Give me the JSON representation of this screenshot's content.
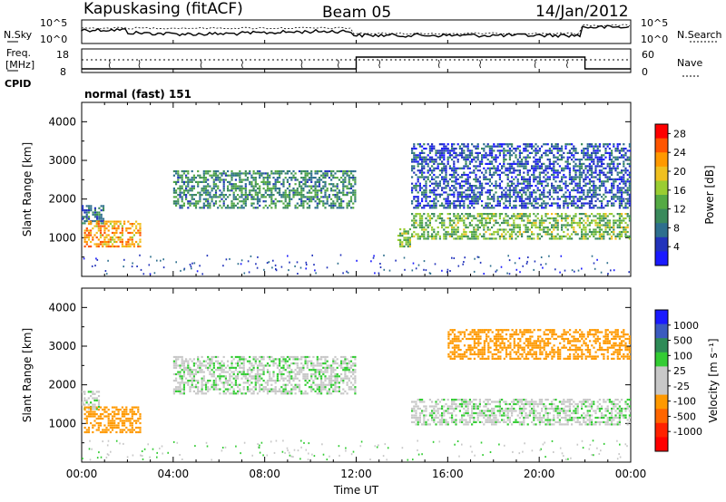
{
  "header": {
    "station": "Kapuskasing (fitACF)",
    "beam": "Beam 05",
    "date": "14/Jan/2012"
  },
  "top_panel": {
    "left_label": "N.Sky",
    "right_label": "N.Search",
    "y_ticks": [
      "10^5",
      "10^0"
    ],
    "right_ticks": [
      "10^5",
      "10^0"
    ]
  },
  "freq_panel": {
    "label_line1": "Freq.",
    "label_line2": "[MHz]",
    "y_ticks": [
      "18",
      "8"
    ],
    "right_label": "Nave",
    "right_ticks": [
      "60",
      "0"
    ]
  },
  "cpid": {
    "label": "CPID",
    "mode": "normal (fast) 151"
  },
  "colors": {
    "power_scale": [
      "#1a1aff",
      "#2233bb",
      "#2e6f8e",
      "#3a8a5c",
      "#55aa44",
      "#9acd32",
      "#f0c020",
      "#ff9900",
      "#ff5500",
      "#ff0000"
    ],
    "velocity_scale": [
      "#1a1aff",
      "#3b5bbf",
      "#2e8b57",
      "#33cc33",
      "#c8c8c8",
      "#c8c8c8",
      "#ff9900",
      "#ff6600",
      "#ff2200",
      "#ff0000"
    ]
  },
  "chart_data": [
    {
      "type": "heatmap",
      "title": "",
      "ylabel": "Slant Range [km]",
      "xlabel": "",
      "y_ticks": [
        "1000",
        "2000",
        "3000",
        "4000"
      ],
      "ylim": [
        0,
        4500
      ],
      "xlim": [
        "00:00",
        "24:00"
      ],
      "colorbar": {
        "label": "Power [dB]",
        "ticks": [
          "4",
          "8",
          "12",
          "16",
          "20",
          "24",
          "28"
        ],
        "range": [
          0,
          30
        ]
      },
      "echo_regions": [
        {
          "start_h": 0.0,
          "end_h": 1.0,
          "range_km": [
            1400,
            1900
          ],
          "value": 8
        },
        {
          "start_h": 0.1,
          "end_h": 2.6,
          "range_km": [
            800,
            1500
          ],
          "value": 22
        },
        {
          "start_h": 4.0,
          "end_h": 12.0,
          "range_km": [
            1800,
            2800
          ],
          "value": 10
        },
        {
          "start_h": 13.8,
          "end_h": 14.4,
          "range_km": [
            800,
            1300
          ],
          "value": 14
        },
        {
          "start_h": 14.4,
          "end_h": 24.0,
          "range_km": [
            1000,
            1700
          ],
          "value": 14
        },
        {
          "start_h": 14.4,
          "end_h": 24.0,
          "range_km": [
            1800,
            3500
          ],
          "value": 6
        }
      ]
    },
    {
      "type": "heatmap",
      "title": "",
      "ylabel": "Slant Range [km]",
      "xlabel": "Time UT",
      "y_ticks": [
        "1000",
        "2000",
        "3000",
        "4000"
      ],
      "x_ticks": [
        "00:00",
        "04:00",
        "08:00",
        "12:00",
        "16:00",
        "20:00",
        "00:00"
      ],
      "ylim": [
        0,
        4500
      ],
      "xlim": [
        "00:00",
        "24:00"
      ],
      "colorbar": {
        "label": "Velocity [m s⁻¹]",
        "ticks": [
          "1000",
          "500",
          "100",
          "25",
          "-25",
          "-100",
          "-500",
          "-1000"
        ],
        "range": [
          -1000,
          1000
        ]
      },
      "echo_regions": [
        {
          "start_h": 0.0,
          "end_h": 0.8,
          "range_km": [
            1400,
            1900
          ],
          "value": 0
        },
        {
          "start_h": 0.1,
          "end_h": 2.6,
          "range_km": [
            800,
            1500
          ],
          "value": -400
        },
        {
          "start_h": 4.0,
          "end_h": 12.0,
          "range_km": [
            1800,
            2800
          ],
          "value": 0
        },
        {
          "start_h": 14.4,
          "end_h": 24.0,
          "range_km": [
            1000,
            1700
          ],
          "value": 0
        },
        {
          "start_h": 16.0,
          "end_h": 24.0,
          "range_km": [
            2700,
            3500
          ],
          "value": -300
        }
      ]
    }
  ]
}
